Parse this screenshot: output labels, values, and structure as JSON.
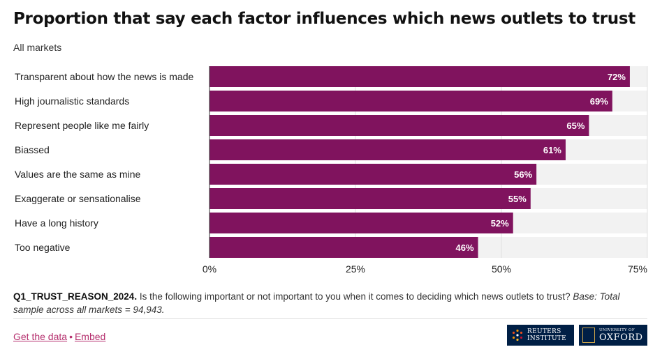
{
  "header": {
    "title": "Proportion that say each factor influences which news outlets to trust",
    "subtitle": "All markets"
  },
  "chart_data": {
    "type": "bar",
    "orientation": "horizontal",
    "categories": [
      "Transparent about how the news is made",
      "High journalistic standards",
      "Represent people like me fairly",
      "Biassed",
      "Values are the same as mine",
      "Exaggerate or sensationalise",
      "Have a long history",
      "Too negative"
    ],
    "values": [
      72,
      69,
      65,
      61,
      56,
      55,
      52,
      46
    ],
    "value_labels": [
      "72%",
      "69%",
      "65%",
      "61%",
      "56%",
      "55%",
      "52%",
      "46%"
    ],
    "xlim": [
      0,
      75
    ],
    "x_ticks": [
      0,
      25,
      50,
      75
    ],
    "x_tick_labels": [
      "0%",
      "25%",
      "50%",
      "75%"
    ],
    "grid": true,
    "bar_color": "#80135e",
    "track_color": "#f2f2f2"
  },
  "footer": {
    "note_code": "Q1_TRUST_REASON_2024.",
    "note_text": " Is the following important or not important to you when it comes to deciding which news outlets to trust? ",
    "note_base": "Base: Total sample across all markets = 94,943.",
    "links": {
      "get_data": "Get the data",
      "separator": "•",
      "embed": "Embed"
    },
    "logos": {
      "reuters_line1": "REUTERS",
      "reuters_line2": "INSTITUTE",
      "oxford_small": "UNIVERSITY OF",
      "oxford_big": "OXFORD"
    }
  }
}
